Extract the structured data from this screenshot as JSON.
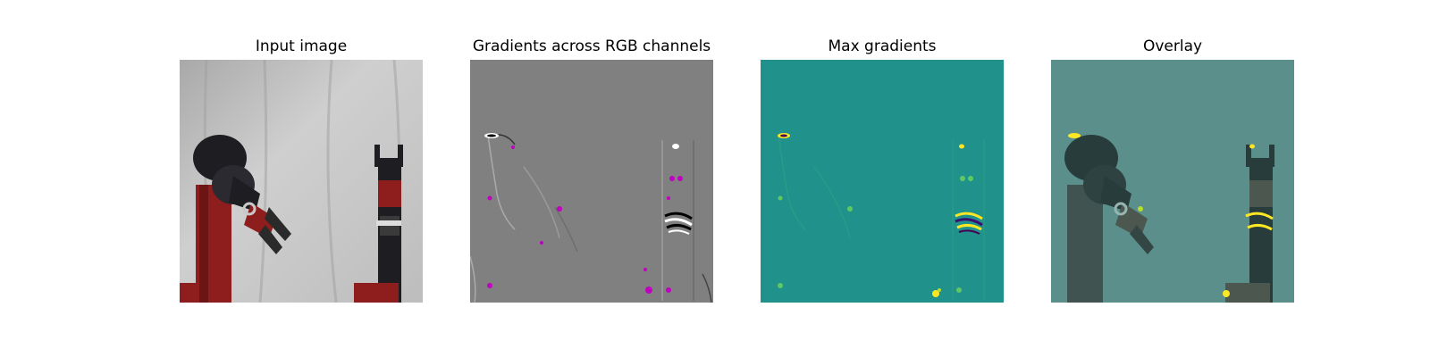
{
  "panels": [
    {
      "title": "Input image",
      "kind": "photo"
    },
    {
      "title": "Gradients across RGB channels",
      "kind": "rgb-gradients"
    },
    {
      "title": "Max gradients",
      "kind": "max-gradients"
    },
    {
      "title": "Overlay",
      "kind": "overlay"
    }
  ],
  "colors": {
    "backdrop": "#c4c4c4",
    "robot_red": "#8e1e1e",
    "robot_black": "#1e1e22",
    "gradient_bg": "#808080",
    "viridis_bg": "#21918c",
    "viridis_high": "#fde725",
    "magenta": "#c000c0"
  }
}
